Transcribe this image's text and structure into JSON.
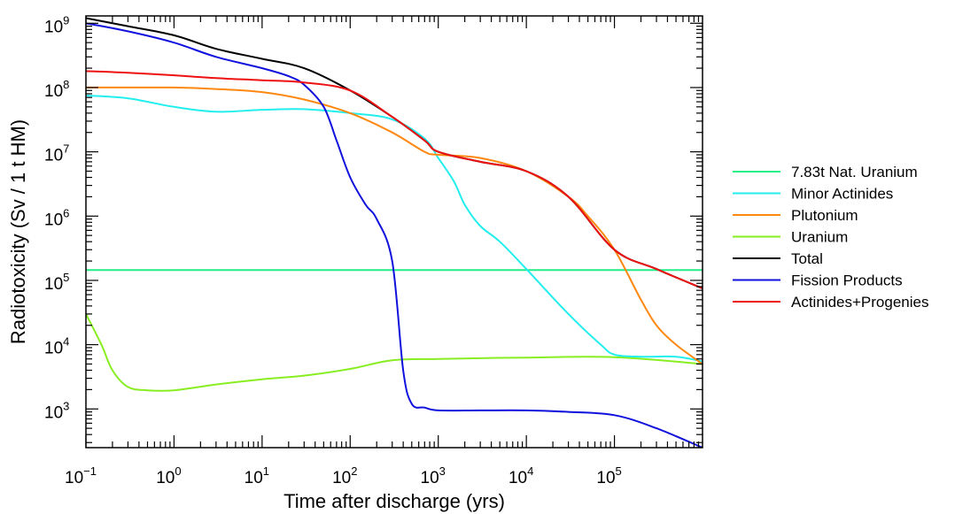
{
  "chart_data": {
    "type": "line",
    "xlabel": "Time after discharge (yrs)",
    "ylabel": "Radiotoxicity (Sv / 1 t HM)",
    "x_scale": "log",
    "y_scale": "log",
    "xlim": [
      0.1,
      1000000
    ],
    "ylim": [
      250,
      1300000000
    ],
    "x_ticks": [
      {
        "mantissa": "10",
        "exponent": "−1",
        "value": 0.1
      },
      {
        "mantissa": "10",
        "exponent": "0",
        "value": 1
      },
      {
        "mantissa": "10",
        "exponent": "1",
        "value": 10
      },
      {
        "mantissa": "10",
        "exponent": "2",
        "value": 100
      },
      {
        "mantissa": "10",
        "exponent": "3",
        "value": 1000
      },
      {
        "mantissa": "10",
        "exponent": "4",
        "value": 10000
      },
      {
        "mantissa": "10",
        "exponent": "5",
        "value": 100000
      }
    ],
    "y_ticks": [
      {
        "mantissa": "10",
        "exponent": "3",
        "value": 1000
      },
      {
        "mantissa": "10",
        "exponent": "4",
        "value": 10000
      },
      {
        "mantissa": "10",
        "exponent": "5",
        "value": 100000
      },
      {
        "mantissa": "10",
        "exponent": "6",
        "value": 1000000
      },
      {
        "mantissa": "10",
        "exponent": "7",
        "value": 10000000
      },
      {
        "mantissa": "10",
        "exponent": "8",
        "value": 100000000
      },
      {
        "mantissa": "10",
        "exponent": "9",
        "value": 1000000000
      }
    ],
    "grid": false,
    "legend_position": "right",
    "series": [
      {
        "name": "7.83t Nat. Uranium",
        "color": "#22ee88",
        "x": [
          0.1,
          1000000
        ],
        "y": [
          145000,
          145000
        ]
      },
      {
        "name": "Minor Actinides",
        "color": "#22eeee",
        "x": [
          0.1,
          0.3,
          1,
          3,
          10,
          30,
          100,
          300,
          700,
          1000,
          1500,
          2000,
          3000,
          5000,
          10000,
          30000,
          70000,
          100000,
          200000,
          500000,
          1000000
        ],
        "y": [
          75000000,
          68000000,
          50000000,
          42000000,
          45000000,
          46000000,
          40000000,
          32000000,
          16000000,
          8000000,
          3500000,
          1500000,
          700000,
          400000,
          150000,
          30000,
          10000,
          7000,
          6500,
          6500,
          5500
        ]
      },
      {
        "name": "Plutonium",
        "color": "#ff8811",
        "x": [
          0.1,
          0.3,
          1,
          3,
          10,
          30,
          100,
          300,
          700,
          1000,
          3000,
          10000,
          30000,
          50000,
          100000,
          200000,
          300000,
          500000,
          1000000
        ],
        "y": [
          100000000,
          100000000,
          100000000,
          95000000,
          85000000,
          65000000,
          40000000,
          20000000,
          10000000,
          9000000,
          8000000,
          5000000,
          2000000,
          1000000,
          300000,
          50000,
          20000,
          10000,
          5000
        ]
      },
      {
        "name": "Uranium",
        "color": "#88ee22",
        "x": [
          0.1,
          0.15,
          0.2,
          0.3,
          0.5,
          1,
          3,
          10,
          30,
          100,
          300,
          1000,
          10000,
          100000,
          1000000
        ],
        "y": [
          30000,
          10000,
          4000,
          2200,
          1950,
          1950,
          2400,
          2900,
          3300,
          4200,
          5700,
          6000,
          6300,
          6400,
          5000
        ]
      },
      {
        "name": "Total",
        "color": "#000000",
        "x": [
          0.1,
          0.3,
          1,
          3,
          10,
          30,
          100,
          300,
          700,
          1000,
          3000,
          10000,
          30000,
          100000,
          300000,
          1000000
        ],
        "y": [
          1200000000,
          900000000,
          650000000,
          400000000,
          280000000,
          200000000,
          90000000,
          35000000,
          15000000,
          10000000,
          7000000,
          5000000,
          2000000,
          300000,
          150000,
          75000
        ]
      },
      {
        "name": "Fission Products",
        "color": "#1111dd",
        "x": [
          0.1,
          0.3,
          1,
          3,
          10,
          20,
          30,
          50,
          70,
          100,
          150,
          200,
          300,
          400,
          500,
          700,
          1000,
          3000,
          10000,
          30000,
          100000,
          300000,
          1000000
        ],
        "y": [
          1000000000,
          750000000,
          500000000,
          300000000,
          200000000,
          150000000,
          110000000,
          50000000,
          15000000,
          4000000,
          1500000,
          900000,
          200000,
          4000,
          1200,
          1050,
          950,
          950,
          950,
          900,
          800,
          500,
          250
        ]
      },
      {
        "name": "Actinides+Progenies",
        "color": "#ee1111",
        "x": [
          0.1,
          0.3,
          1,
          3,
          10,
          30,
          100,
          300,
          700,
          1000,
          3000,
          10000,
          30000,
          100000,
          300000,
          1000000
        ],
        "y": [
          180000000,
          170000000,
          155000000,
          140000000,
          130000000,
          120000000,
          90000000,
          35000000,
          15000000,
          10000000,
          7000000,
          5000000,
          2000000,
          300000,
          150000,
          75000
        ]
      }
    ]
  }
}
